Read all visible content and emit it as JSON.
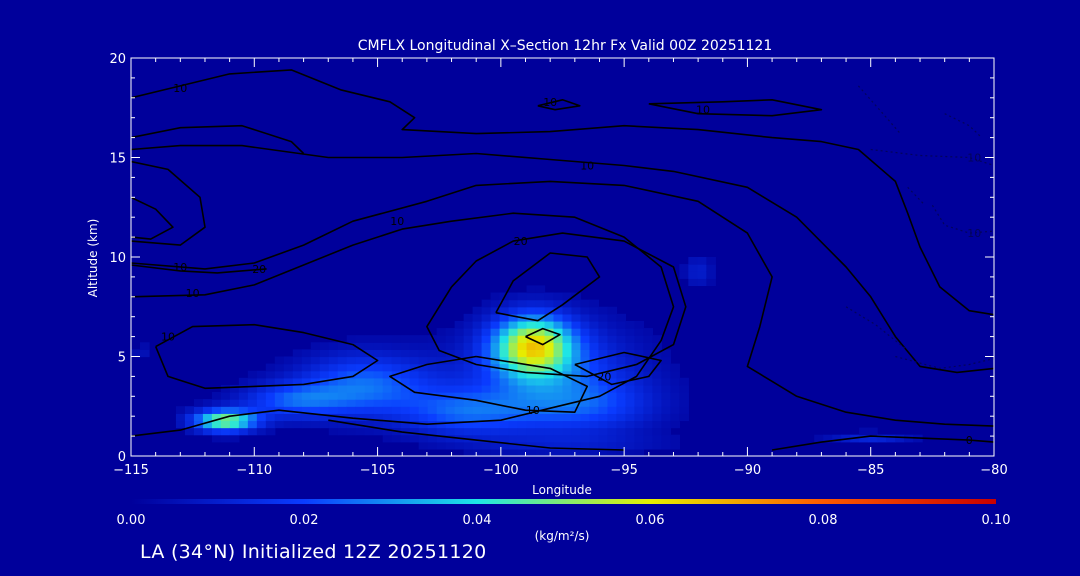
{
  "footer": "LA (34°N) Initialized 12Z 20251120",
  "chart_data": {
    "type": "heatmap",
    "title": "CMFLX Longitudinal X–Section 12hr  Fx Valid 00Z 20251121",
    "xlabel": "Longitude",
    "ylabel": "Altitude (km)",
    "xlim": [
      -115,
      -80
    ],
    "ylim": [
      0,
      20
    ],
    "x_ticks": [
      -115,
      -110,
      -105,
      -100,
      -95,
      -90,
      -85,
      -80
    ],
    "x_tick_labels": [
      "−115",
      "−110",
      "−105",
      "−100",
      "−95",
      "−90",
      "−85",
      "−80"
    ],
    "y_ticks": [
      0,
      5,
      10,
      15,
      20
    ],
    "y_tick_labels": [
      "0",
      "5",
      "10",
      "15",
      "20"
    ],
    "colorbar": {
      "label": "(kg/m²/s)",
      "range": [
        0.0,
        0.1
      ],
      "ticks": [
        0.0,
        0.02,
        0.04,
        0.06,
        0.08,
        0.1
      ],
      "tick_labels": [
        "0.00",
        "0.02",
        "0.04",
        "0.06",
        "0.08",
        "0.10"
      ]
    },
    "field_blobs": [
      {
        "lon": -111.2,
        "alt": 1.8,
        "sx": 1.3,
        "sy": 0.55,
        "value": 0.05
      },
      {
        "lon": -108.5,
        "alt": 2.8,
        "sx": 2.2,
        "sy": 0.9,
        "value": 0.02
      },
      {
        "lon": -105.5,
        "alt": 3.6,
        "sx": 2.8,
        "sy": 1.6,
        "value": 0.025
      },
      {
        "lon": -101.5,
        "alt": 2.2,
        "sx": 2.6,
        "sy": 1.2,
        "value": 0.02
      },
      {
        "lon": -98.7,
        "alt": 5.6,
        "sx": 1.6,
        "sy": 1.5,
        "value": 0.052
      },
      {
        "lon": -98.0,
        "alt": 4.2,
        "sx": 3.6,
        "sy": 2.6,
        "value": 0.02
      },
      {
        "lon": -96.5,
        "alt": 2.5,
        "sx": 3.0,
        "sy": 1.4,
        "value": 0.014
      },
      {
        "lon": -97.0,
        "alt": 0.6,
        "sx": 4.5,
        "sy": 0.5,
        "value": 0.006
      },
      {
        "lon": -92.0,
        "alt": 9.3,
        "sx": 0.6,
        "sy": 0.8,
        "value": 0.01
      },
      {
        "lon": -85.0,
        "alt": 0.9,
        "sx": 1.8,
        "sy": 0.3,
        "value": 0.012
      },
      {
        "lon": -114.6,
        "alt": 5.2,
        "sx": 0.4,
        "sy": 0.5,
        "value": 0.006
      }
    ],
    "contours": [
      {
        "label": "0",
        "label_at": [
          -81.0,
          0.8
        ],
        "points": [
          [
            -89,
            0.3
          ],
          [
            -87,
            0.7
          ],
          [
            -85,
            1.0
          ],
          [
            -83,
            0.9
          ],
          [
            -81,
            0.8
          ],
          [
            -80,
            0.7
          ]
        ]
      },
      {
        "label": "",
        "label_at": null,
        "points": [
          [
            -107,
            1.8
          ],
          [
            -104,
            1.2
          ],
          [
            -101,
            0.8
          ],
          [
            -98,
            0.4
          ],
          [
            -95,
            0.3
          ]
        ]
      },
      {
        "label": "10",
        "label_at": [
          -113.0,
          9.5
        ],
        "points": [
          [
            -115,
            9.7
          ],
          [
            -112,
            9.4
          ],
          [
            -110,
            9.7
          ],
          [
            -108,
            10.6
          ],
          [
            -106,
            11.8
          ],
          [
            -103,
            12.8
          ],
          [
            -101,
            13.6
          ],
          [
            -98,
            13.8
          ],
          [
            -95,
            13.6
          ],
          [
            -92,
            12.8
          ],
          [
            -90,
            11.2
          ],
          [
            -89,
            9.0
          ],
          [
            -89.5,
            6.5
          ],
          [
            -90,
            4.5
          ],
          [
            -88,
            3.0
          ],
          [
            -86,
            2.2
          ],
          [
            -84,
            1.8
          ],
          [
            -82,
            1.6
          ],
          [
            -80,
            1.5
          ]
        ]
      },
      {
        "label": "10",
        "label_at": [
          -112.5,
          8.2
        ],
        "points": [
          [
            -115,
            8.0
          ],
          [
            -112,
            8.1
          ],
          [
            -110,
            8.6
          ],
          [
            -108,
            9.6
          ],
          [
            -106,
            10.6
          ],
          [
            -104,
            11.4
          ],
          [
            -102,
            11.8
          ],
          [
            -99.5,
            12.2
          ],
          [
            -97,
            12.0
          ],
          [
            -95,
            11.0
          ],
          [
            -93.5,
            9.5
          ],
          [
            -93,
            7.5
          ],
          [
            -93.5,
            5.8
          ],
          [
            -94.5,
            4.0
          ],
          [
            -96,
            3.0
          ],
          [
            -98,
            2.4
          ],
          [
            -100,
            1.8
          ],
          [
            -103,
            1.6
          ],
          [
            -106,
            1.9
          ],
          [
            -109,
            2.3
          ],
          [
            -111,
            2.0
          ],
          [
            -113,
            1.3
          ],
          [
            -115,
            1.0
          ]
        ]
      },
      {
        "label": "10",
        "label_at": [
          -113.5,
          6.0
        ],
        "points": [
          [
            -114,
            5.5
          ],
          [
            -112.5,
            6.5
          ],
          [
            -110,
            6.6
          ],
          [
            -108,
            6.2
          ],
          [
            -106,
            5.6
          ],
          [
            -105,
            4.8
          ],
          [
            -106,
            4.0
          ],
          [
            -108,
            3.6
          ],
          [
            -110,
            3.5
          ],
          [
            -112,
            3.4
          ],
          [
            -113.5,
            4.0
          ],
          [
            -114,
            5.5
          ]
        ]
      },
      {
        "label": "10",
        "label_at": [
          -98.7,
          2.3
        ],
        "points": [
          [
            -101,
            5.0
          ],
          [
            -103,
            4.6
          ],
          [
            -104.5,
            4.0
          ],
          [
            -103.5,
            3.2
          ],
          [
            -101,
            2.8
          ],
          [
            -99,
            2.3
          ],
          [
            -97,
            2.2
          ],
          [
            -96.5,
            3.5
          ],
          [
            -98,
            4.4
          ],
          [
            -101,
            5.0
          ]
        ]
      },
      {
        "label": "20",
        "label_at": [
          -99.2,
          10.8
        ],
        "points": [
          [
            -102,
            8.5
          ],
          [
            -101,
            9.8
          ],
          [
            -99.5,
            10.8
          ],
          [
            -97.5,
            11.2
          ],
          [
            -95,
            10.8
          ],
          [
            -93,
            9.5
          ],
          [
            -92.5,
            7.5
          ],
          [
            -93,
            5.6
          ],
          [
            -94.5,
            4.6
          ],
          [
            -96.5,
            4.0
          ],
          [
            -99,
            4.2
          ],
          [
            -101,
            4.6
          ],
          [
            -102.5,
            5.3
          ],
          [
            -103,
            6.5
          ],
          [
            -102,
            8.5
          ]
        ]
      },
      {
        "label": "20",
        "label_at": [
          -109.8,
          9.4
        ],
        "points": [
          [
            -115,
            9.6
          ],
          [
            -113,
            9.3
          ],
          [
            -111.5,
            9.2
          ],
          [
            -109.5,
            9.4
          ]
        ]
      },
      {
        "label": "",
        "label_at": null,
        "points": [
          [
            -100.2,
            7.2
          ],
          [
            -99.5,
            8.8
          ],
          [
            -98,
            10.2
          ],
          [
            -96.5,
            10.0
          ],
          [
            -96,
            9.0
          ],
          [
            -97.5,
            7.6
          ],
          [
            -98.5,
            6.8
          ],
          [
            -100.2,
            7.2
          ]
        ]
      },
      {
        "label": "",
        "label_at": null,
        "points": [
          [
            -99,
            6.0
          ],
          [
            -98.3,
            6.4
          ],
          [
            -97.6,
            6.1
          ],
          [
            -98.3,
            5.6
          ],
          [
            -99,
            6.0
          ]
        ]
      },
      {
        "label": "20",
        "label_at": [
          -95.8,
          4.0
        ],
        "points": [
          [
            -97,
            4.6
          ],
          [
            -95,
            5.2
          ],
          [
            -93.5,
            4.8
          ],
          [
            -94,
            4.0
          ],
          [
            -95.5,
            3.6
          ],
          [
            -97,
            4.6
          ]
        ]
      },
      {
        "label": "10",
        "label_at": [
          -96.5,
          14.6
        ],
        "points": [
          [
            -115,
            15.4
          ],
          [
            -113,
            15.6
          ],
          [
            -110.5,
            15.6
          ],
          [
            -107,
            15.0
          ],
          [
            -104,
            15.0
          ],
          [
            -101,
            15.2
          ],
          [
            -98,
            14.9
          ],
          [
            -95,
            14.6
          ],
          [
            -93,
            14.3
          ],
          [
            -90,
            13.5
          ],
          [
            -88,
            12.0
          ],
          [
            -86,
            9.5
          ],
          [
            -85,
            8.0
          ],
          [
            -84,
            6.0
          ],
          [
            -83,
            4.5
          ],
          [
            -81.5,
            4.2
          ],
          [
            -80,
            4.4
          ]
        ]
      },
      {
        "label": "10",
        "label_at": [
          -113.0,
          18.5
        ],
        "points": [
          [
            -115,
            18.0
          ],
          [
            -113,
            18.6
          ],
          [
            -111,
            19.2
          ],
          [
            -108.5,
            19.4
          ],
          [
            -106.5,
            18.4
          ],
          [
            -104.5,
            17.8
          ],
          [
            -103.5,
            17.0
          ],
          [
            -104,
            16.4
          ],
          [
            -101,
            16.2
          ],
          [
            -98,
            16.3
          ],
          [
            -95,
            16.6
          ],
          [
            -92,
            16.4
          ],
          [
            -89,
            16.0
          ],
          [
            -87,
            15.8
          ],
          [
            -85.5,
            15.4
          ],
          [
            -84,
            13.8
          ],
          [
            -83.5,
            12.2
          ],
          [
            -83,
            10.5
          ],
          [
            -82.2,
            8.5
          ],
          [
            -81,
            7.3
          ],
          [
            -80,
            7.1
          ]
        ]
      },
      {
        "label": "",
        "label_at": null,
        "points": [
          [
            -115,
            16.0
          ],
          [
            -113,
            16.5
          ],
          [
            -110.5,
            16.6
          ],
          [
            -108.5,
            15.8
          ],
          [
            -108,
            15.2
          ]
        ]
      },
      {
        "label": "10",
        "label_at": [
          -104.2,
          11.8
        ],
        "points": [
          [
            -115,
            14.8
          ],
          [
            -113.5,
            14.4
          ],
          [
            -112.2,
            13.0
          ],
          [
            -112,
            11.5
          ],
          [
            -113,
            10.6
          ],
          [
            -115,
            10.8
          ]
        ]
      },
      {
        "label": "",
        "label_at": null,
        "points": [
          [
            -115,
            13.0
          ],
          [
            -114,
            12.4
          ],
          [
            -113.3,
            11.5
          ],
          [
            -114.2,
            10.9
          ],
          [
            -115,
            11.0
          ]
        ]
      },
      {
        "label": "10",
        "label_at": [
          -98.0,
          17.8
        ],
        "points": [
          [
            -98.5,
            17.6
          ],
          [
            -97.5,
            17.9
          ],
          [
            -96.8,
            17.6
          ],
          [
            -97.8,
            17.4
          ],
          [
            -98.5,
            17.6
          ]
        ]
      },
      {
        "label": "10",
        "label_at": [
          -91.8,
          17.4
        ],
        "points": [
          [
            -94,
            17.7
          ],
          [
            -91,
            17.8
          ],
          [
            -89,
            17.9
          ],
          [
            -87,
            17.4
          ],
          [
            -89,
            17.1
          ],
          [
            -92,
            17.2
          ],
          [
            -94,
            17.7
          ]
        ]
      }
    ],
    "dotted_contours": [
      {
        "label": "10",
        "label_at": [
          -80.8,
          15.0
        ],
        "points": [
          [
            -85,
            15.4
          ],
          [
            -83,
            15.1
          ],
          [
            -81,
            15.0
          ],
          [
            -80,
            14.6
          ]
        ]
      },
      {
        "label": "10",
        "label_at": [
          -80.8,
          11.2
        ],
        "points": [
          [
            -82.5,
            12.6
          ],
          [
            -82,
            11.6
          ],
          [
            -81,
            11.2
          ],
          [
            -80,
            11.3
          ]
        ]
      },
      {
        "label": "",
        "label_at": null,
        "points": [
          [
            -85.5,
            18.6
          ],
          [
            -84.5,
            17.2
          ],
          [
            -83.8,
            16.2
          ]
        ]
      },
      {
        "label": "",
        "label_at": null,
        "points": [
          [
            -82,
            17.2
          ],
          [
            -81,
            16.6
          ],
          [
            -80.5,
            16.0
          ]
        ]
      },
      {
        "label": "",
        "label_at": null,
        "points": [
          [
            -83.5,
            13.5
          ],
          [
            -82.8,
            12.6
          ]
        ]
      },
      {
        "label": "",
        "label_at": null,
        "points": [
          [
            -84,
            5.0
          ],
          [
            -82.2,
            4.4
          ],
          [
            -81,
            4.6
          ],
          [
            -80,
            4.9
          ]
        ]
      },
      {
        "label": "",
        "label_at": null,
        "points": [
          [
            -86,
            7.5
          ],
          [
            -84.8,
            6.6
          ],
          [
            -83.6,
            5.4
          ]
        ]
      }
    ]
  }
}
